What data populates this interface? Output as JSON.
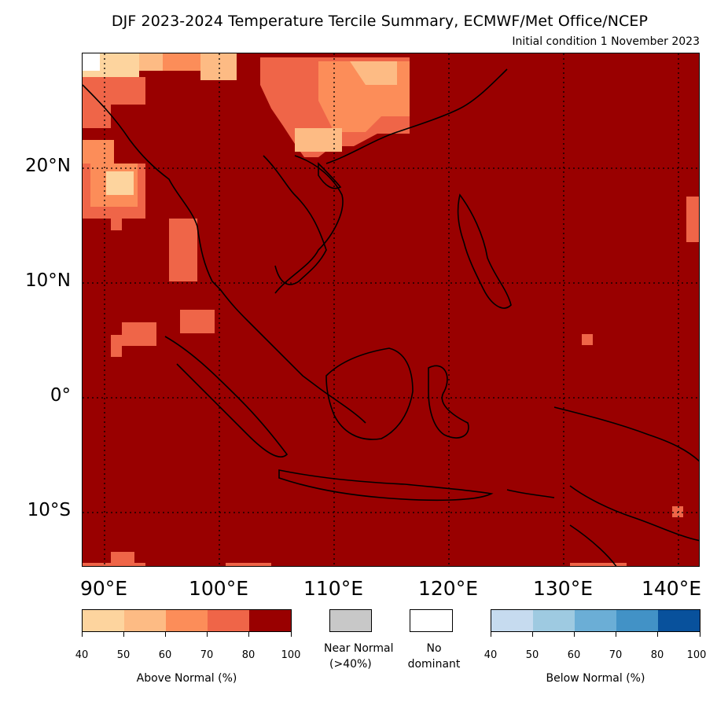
{
  "title": "DJF 2023-2024 Temperature Tercile Summary, ECMWF/Met Office/NCEP",
  "subtitle": "Initial condition 1 November 2023",
  "map": {
    "lon_range": [
      88,
      142
    ],
    "lat_range": [
      -15,
      30
    ],
    "lat_labels": [
      "20°N",
      "10°N",
      "0°",
      "10°S"
    ],
    "lon_labels": [
      "90°E",
      "100°E",
      "110°E",
      "120°E",
      "130°E",
      "140°E"
    ],
    "gridlines": "dotted",
    "dominant_category": "Above Normal 80-100%",
    "colors": {
      "an_40_50": "#fdd49e",
      "an_50_60": "#fdbb84",
      "an_60_70": "#fc8d59",
      "an_70_80": "#ef6548",
      "an_80_100": "#990000",
      "near_normal": "#c8c8c8",
      "no_dominant": "#ffffff",
      "bn_40_50": "#c6dbef",
      "bn_50_60": "#9ecae1",
      "bn_60_70": "#6baed6",
      "bn_70_80": "#4292c6",
      "bn_80_100": "#08519c"
    }
  },
  "legend": {
    "above": {
      "label": "Above Normal (%)",
      "ticks": [
        "40",
        "50",
        "60",
        "70",
        "80",
        "100"
      ],
      "colors": [
        "#fdd49e",
        "#fdbb84",
        "#fc8d59",
        "#ef6548",
        "#990000"
      ]
    },
    "near_normal": {
      "line1": "Near Normal",
      "line2": "(>40%)",
      "color": "#c8c8c8"
    },
    "no_dominant": {
      "line1": "No",
      "line2": "dominant",
      "color": "#ffffff"
    },
    "below": {
      "label": "Below Normal (%)",
      "ticks": [
        "40",
        "50",
        "60",
        "70",
        "80",
        "100"
      ],
      "colors": [
        "#c6dbef",
        "#9ecae1",
        "#6baed6",
        "#4292c6",
        "#08519c"
      ]
    }
  }
}
